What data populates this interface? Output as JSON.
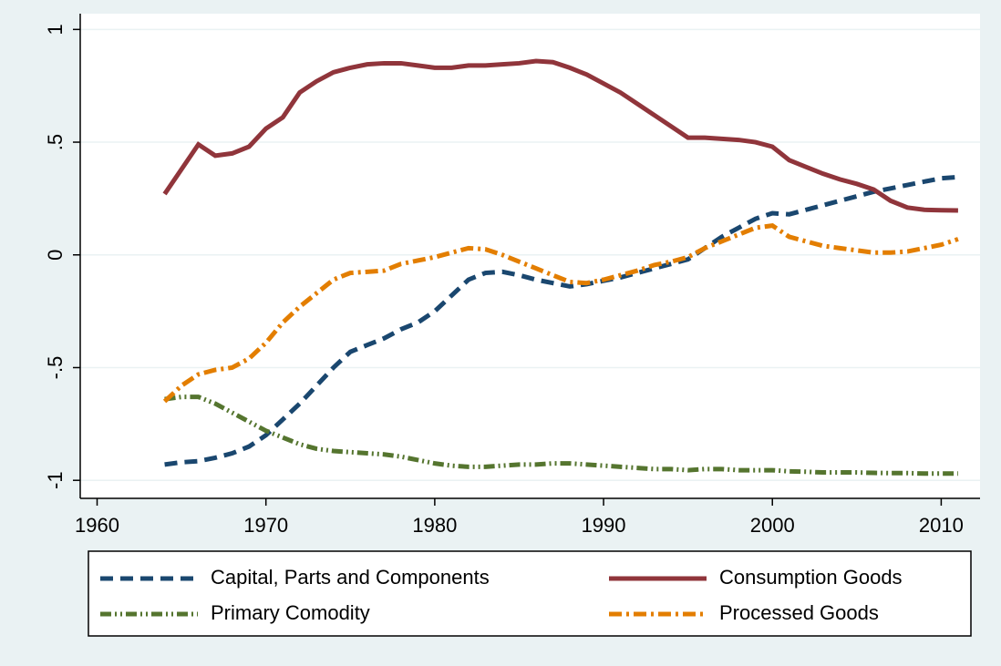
{
  "chart_data": {
    "type": "line",
    "x": [
      1964,
      1965,
      1966,
      1967,
      1968,
      1969,
      1970,
      1971,
      1972,
      1973,
      1974,
      1975,
      1976,
      1977,
      1978,
      1979,
      1980,
      1981,
      1982,
      1983,
      1984,
      1985,
      1986,
      1987,
      1988,
      1989,
      1990,
      1991,
      1992,
      1993,
      1994,
      1995,
      1996,
      1997,
      1998,
      1999,
      2000,
      2001,
      2002,
      2003,
      2004,
      2005,
      2006,
      2007,
      2008,
      2009,
      2010,
      2011
    ],
    "series": [
      {
        "name": "Capital, Parts and Components",
        "color": "#1a476f",
        "dash": "14 8",
        "values": [
          -0.93,
          -0.92,
          -0.915,
          -0.9,
          -0.88,
          -0.85,
          -0.8,
          -0.73,
          -0.66,
          -0.58,
          -0.5,
          -0.43,
          -0.4,
          -0.37,
          -0.33,
          -0.3,
          -0.25,
          -0.18,
          -0.11,
          -0.08,
          -0.075,
          -0.09,
          -0.11,
          -0.125,
          -0.14,
          -0.13,
          -0.115,
          -0.1,
          -0.08,
          -0.06,
          -0.04,
          -0.02,
          0.03,
          0.08,
          0.12,
          0.16,
          0.185,
          0.18,
          0.2,
          0.22,
          0.24,
          0.26,
          0.28,
          0.295,
          0.31,
          0.325,
          0.34,
          0.345
        ]
      },
      {
        "name": "Consumption Goods",
        "color": "#90353b",
        "dash": "none",
        "values": [
          0.27,
          0.38,
          0.49,
          0.44,
          0.45,
          0.48,
          0.56,
          0.61,
          0.72,
          0.77,
          0.81,
          0.83,
          0.845,
          0.85,
          0.85,
          0.84,
          0.83,
          0.83,
          0.84,
          0.84,
          0.845,
          0.85,
          0.86,
          0.855,
          0.83,
          0.8,
          0.76,
          0.72,
          0.67,
          0.62,
          0.57,
          0.52,
          0.52,
          0.515,
          0.51,
          0.5,
          0.48,
          0.42,
          0.39,
          0.36,
          0.335,
          0.315,
          0.29,
          0.24,
          0.21,
          0.2,
          0.198,
          0.197
        ]
      },
      {
        "name": "Primary Comodity",
        "color": "#55752f",
        "dash": "12 4 2 4 2 4",
        "values": [
          -0.64,
          -0.63,
          -0.63,
          -0.66,
          -0.7,
          -0.74,
          -0.78,
          -0.81,
          -0.84,
          -0.86,
          -0.87,
          -0.875,
          -0.88,
          -0.885,
          -0.895,
          -0.91,
          -0.925,
          -0.935,
          -0.94,
          -0.94,
          -0.935,
          -0.93,
          -0.93,
          -0.925,
          -0.925,
          -0.93,
          -0.935,
          -0.94,
          -0.945,
          -0.95,
          -0.95,
          -0.955,
          -0.95,
          -0.95,
          -0.955,
          -0.955,
          -0.955,
          -0.96,
          -0.962,
          -0.965,
          -0.965,
          -0.965,
          -0.967,
          -0.968,
          -0.968,
          -0.97,
          -0.97,
          -0.97
        ]
      },
      {
        "name": "Processed Goods",
        "color": "#e37e00",
        "dash": "14 5 3 5",
        "values": [
          -0.65,
          -0.58,
          -0.53,
          -0.51,
          -0.5,
          -0.46,
          -0.39,
          -0.3,
          -0.23,
          -0.17,
          -0.11,
          -0.08,
          -0.075,
          -0.07,
          -0.04,
          -0.025,
          -0.01,
          0.01,
          0.03,
          0.025,
          0.0,
          -0.03,
          -0.06,
          -0.09,
          -0.12,
          -0.125,
          -0.11,
          -0.09,
          -0.07,
          -0.045,
          -0.03,
          -0.01,
          0.03,
          0.06,
          0.09,
          0.12,
          0.13,
          0.08,
          0.06,
          0.04,
          0.03,
          0.02,
          0.01,
          0.01,
          0.015,
          0.03,
          0.045,
          0.07
        ]
      }
    ],
    "xlim": [
      1959,
      2012.3
    ],
    "xticks": [
      1960,
      1970,
      1980,
      1990,
      2000,
      2010
    ],
    "ylim": [
      -1.08,
      1.07
    ],
    "yticks": [
      -1,
      {
        "value": -0.5,
        "label": "-.5"
      },
      0,
      {
        "value": 0.5,
        "label": ".5"
      },
      1
    ],
    "grid": true,
    "legend": "bottom"
  }
}
